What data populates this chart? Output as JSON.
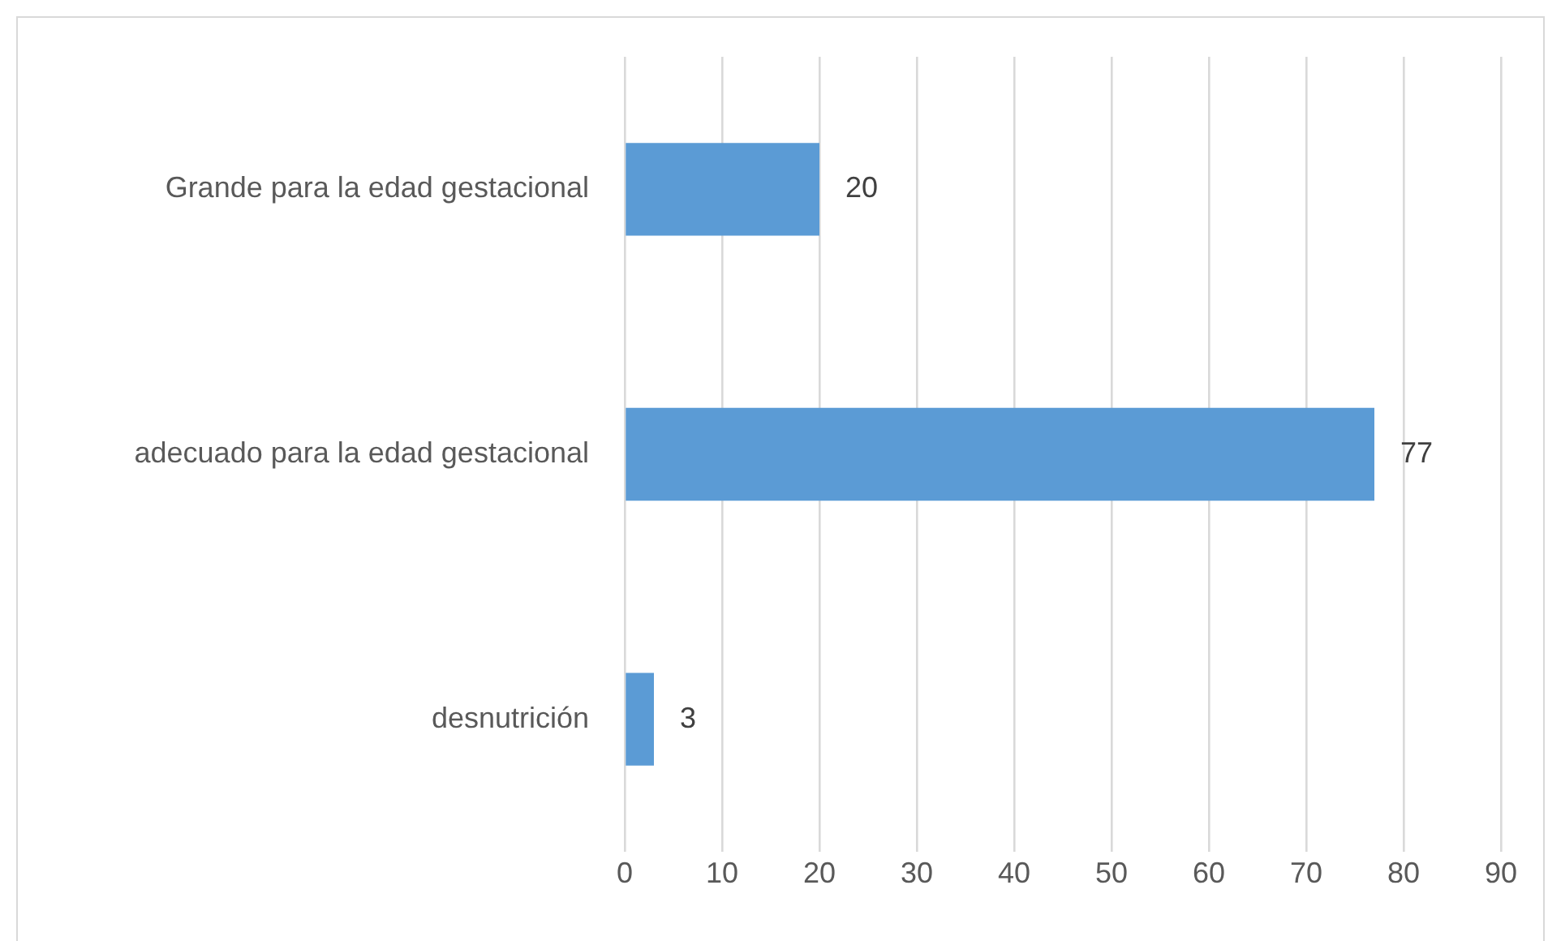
{
  "chart_data": {
    "type": "bar",
    "orientation": "horizontal",
    "categories": [
      "Grande para la edad gestacional",
      "adecuado para la edad gestacional",
      "desnutrición"
    ],
    "values": [
      20,
      77,
      3
    ],
    "color": "#5b9bd5",
    "xlim": [
      0,
      90
    ],
    "xticks": [
      0,
      10,
      20,
      30,
      40,
      50,
      60,
      70,
      80,
      90
    ],
    "grid": "x",
    "data_labels": true
  }
}
